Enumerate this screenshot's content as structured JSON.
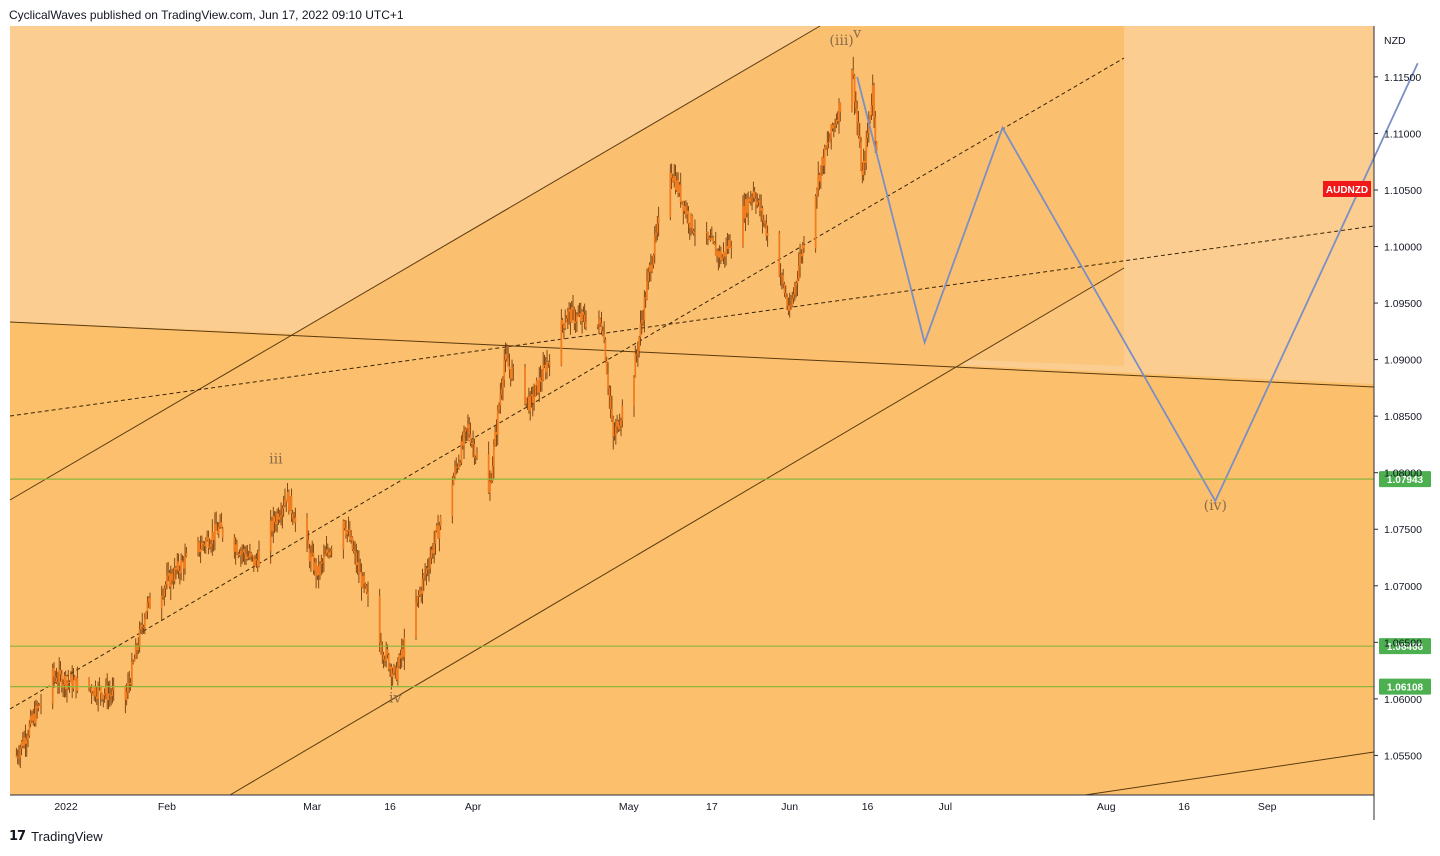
{
  "header": {
    "publish_line": "CyclicalWaves published on TradingView.com, Jun 17, 2022 09:10 UTC+1"
  },
  "footer": {
    "brand": "TradingView",
    "logo_glyph": "17"
  },
  "colors": {
    "channel_outer": "#fbcd90",
    "channel_inner": "#fbbf70",
    "lower_zone": "#fcc06c",
    "box": "#fbbf6f",
    "candle": "#f07d20",
    "projection": "#7b8fc4",
    "level_line": "#8db53a",
    "level_badge": "#4caf50",
    "symbol_badge": "#f01818"
  },
  "chart_data": {
    "type": "line",
    "title": "",
    "symbol": "AUDNZD",
    "currency": "NZD",
    "x_axis_labels": [
      "2022",
      "Feb",
      "Mar",
      "16",
      "Apr",
      "May",
      "17",
      "Jun",
      "16",
      "Jul",
      "Aug",
      "16",
      "Sep"
    ],
    "y_axis_ticks": [
      "1.11500",
      "1.11000",
      "1.10500",
      "1.10000",
      "1.09500",
      "1.09000",
      "1.08500",
      "1.08000",
      "1.07500",
      "1.07000",
      "1.06500",
      "1.06000",
      "1.05500"
    ],
    "ylim": [
      1.0515,
      1.1195
    ],
    "price_anchors": [
      {
        "date": "2022-01-03",
        "price": 1.055
      },
      {
        "date": "2022-01-10",
        "price": 1.062
      },
      {
        "date": "2022-01-24",
        "price": 1.06
      },
      {
        "date": "2022-01-28",
        "price": 1.068
      },
      {
        "date": "2022-02-04",
        "price": 1.072
      },
      {
        "date": "2022-02-11",
        "price": 1.075
      },
      {
        "date": "2022-02-18",
        "price": 1.072
      },
      {
        "date": "2022-02-24",
        "price": 1.078
      },
      {
        "date": "2022-03-02",
        "price": 1.071
      },
      {
        "date": "2022-03-07",
        "price": 1.076
      },
      {
        "date": "2022-03-14",
        "price": 1.065
      },
      {
        "date": "2022-03-17",
        "price": 1.062
      },
      {
        "date": "2022-03-24",
        "price": 1.073
      },
      {
        "date": "2022-03-31",
        "price": 1.084
      },
      {
        "date": "2022-04-04",
        "price": 1.078
      },
      {
        "date": "2022-04-07",
        "price": 1.09
      },
      {
        "date": "2022-04-12",
        "price": 1.086
      },
      {
        "date": "2022-04-19",
        "price": 1.094
      },
      {
        "date": "2022-04-26",
        "price": 1.093
      },
      {
        "date": "2022-04-28",
        "price": 1.083
      },
      {
        "date": "2022-05-02",
        "price": 1.089
      },
      {
        "date": "2022-05-05",
        "price": 1.098
      },
      {
        "date": "2022-05-09",
        "price": 1.107
      },
      {
        "date": "2022-05-13",
        "price": 1.102
      },
      {
        "date": "2022-05-19",
        "price": 1.099
      },
      {
        "date": "2022-05-25",
        "price": 1.105
      },
      {
        "date": "2022-05-30",
        "price": 1.098
      },
      {
        "date": "2022-06-01",
        "price": 1.094
      },
      {
        "date": "2022-06-03",
        "price": 1.099
      },
      {
        "date": "2022-06-07",
        "price": 1.107
      },
      {
        "date": "2022-06-13",
        "price": 1.116
      },
      {
        "date": "2022-06-15",
        "price": 1.106
      },
      {
        "date": "2022-06-17",
        "price": 1.114
      },
      {
        "date": "2022-06-18",
        "price": 1.106
      }
    ],
    "projection_path": [
      {
        "date": "2022-06-14",
        "price": 1.115
      },
      {
        "date": "2022-06-27",
        "price": 1.0915
      },
      {
        "date": "2022-07-12",
        "price": 1.1105
      },
      {
        "date": "2022-08-22",
        "price": 1.0775
      },
      {
        "date": "2022-09-30",
        "price": 1.1162
      }
    ],
    "horizontal_levels": [
      {
        "label": "1.07943",
        "price": 1.07943
      },
      {
        "label": "1.06466",
        "price": 1.06466
      },
      {
        "label": "1.06108",
        "price": 1.06108
      }
    ],
    "wave_labels": [
      {
        "text": "(iii)",
        "date": "2022-06-11",
        "price": 1.1178
      },
      {
        "text": "v",
        "date": "2022-06-14",
        "price": 1.1185
      },
      {
        "text": "iii",
        "date": "2022-02-22",
        "price": 1.0808
      },
      {
        "text": "iv",
        "date": "2022-03-17",
        "price": 1.0597
      },
      {
        "text": "(iv)",
        "date": "2022-08-22",
        "price": 1.0767
      }
    ],
    "current_price_label": "AUDNZD"
  }
}
